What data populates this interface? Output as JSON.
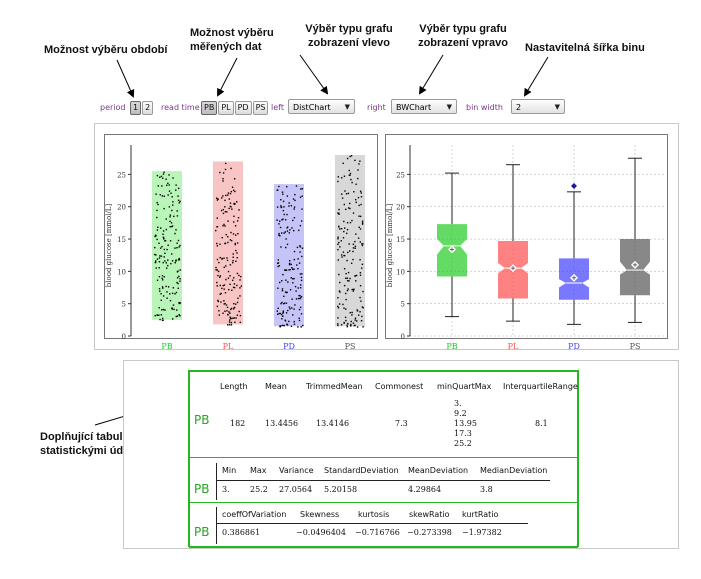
{
  "annotations": {
    "period_select": "Možnost výběru období",
    "data_select": "Možnost výběru měřených dat",
    "left_chart": "Výběr typu grafu zobrazení vlevo",
    "right_chart": "Výběr typu grafu zobrazení vpravo",
    "bin_width": "Nastavitelná šířka binu",
    "stats_table": "Doplňující tabulka se statistickými údaji"
  },
  "controls": {
    "period_label": "period",
    "periods": [
      "1",
      "2"
    ],
    "read_time_label": "read time",
    "read_times": [
      "PB",
      "PL",
      "PD",
      "PS"
    ],
    "read_time_selected": "PB",
    "left_label": "left",
    "left_value": "DistChart",
    "right_label": "right",
    "right_value": "BWChart",
    "bin_width_label": "bin width",
    "bin_width_value": "2"
  },
  "colors": {
    "PB": "#22cc22",
    "PL": "#ff4d4d",
    "PD": "#4040ff",
    "PS": "#555555",
    "PB_fill": "#b9f5b9",
    "PL_fill": "#f9c4c4",
    "PD_fill": "#c4c4f8",
    "PS_fill": "#d8d8d8"
  },
  "chart_data": [
    {
      "type": "scatter",
      "chart": "DistChart",
      "ylabel": "blood glucose [mmol/L]",
      "categories": [
        "PB",
        "PL",
        "PD",
        "PS"
      ],
      "ylim": [
        0,
        28
      ],
      "yticks": [
        0,
        5,
        10,
        15,
        20,
        25
      ],
      "ranges": [
        [
          2.5,
          25.5
        ],
        [
          1.8,
          27
        ],
        [
          1.5,
          23.5
        ],
        [
          1.5,
          28
        ]
      ],
      "gridlines": false
    },
    {
      "type": "box",
      "chart": "BWChart",
      "ylabel": "blood glucose [mmol/L]",
      "categories": [
        "PB",
        "PL",
        "PD",
        "PS"
      ],
      "ylim": [
        0,
        28
      ],
      "yticks": [
        0,
        5,
        10,
        15,
        20,
        25
      ],
      "gridlines": true,
      "series": [
        {
          "name": "PB",
          "min": 3.0,
          "q1": 9.2,
          "median": 13.95,
          "q3": 17.3,
          "max": 25.2,
          "mean": 13.4,
          "notch": [
            12.6,
            15.0
          ]
        },
        {
          "name": "PL",
          "min": 2.3,
          "q1": 5.8,
          "median": 10.5,
          "q3": 14.7,
          "max": 26.5,
          "mean": 10.5,
          "notch": [
            9.7,
            11.3
          ]
        },
        {
          "name": "PD",
          "min": 1.8,
          "q1": 5.6,
          "median": 8.2,
          "q3": 12.0,
          "max": 22.3,
          "mean": 9.0,
          "notch": [
            7.5,
            8.8
          ],
          "outliers": [
            23.2
          ]
        },
        {
          "name": "PS",
          "min": 2.1,
          "q1": 6.3,
          "median": 10.2,
          "q3": 15.0,
          "max": 27.5,
          "mean": 11.0,
          "notch": [
            9.5,
            11.5
          ]
        }
      ]
    }
  ],
  "stats": {
    "group": "PB",
    "table1": {
      "headers": [
        "Length",
        "Mean",
        "TrimmedMean",
        "Commonest",
        "minQuartMax",
        "InterquartileRange"
      ],
      "values": [
        "182",
        "13.4456",
        "13.4146",
        "7.3",
        "",
        "8.1"
      ],
      "minQuartMax": [
        "3.",
        "9.2",
        "13.95",
        "17.3",
        "25.2"
      ]
    },
    "table2": {
      "headers": [
        "Min",
        "Max",
        "Variance",
        "StandardDeviation",
        "MeanDeviation",
        "MedianDeviation"
      ],
      "values": [
        "3.",
        "25.2",
        "27.0564",
        "5.20158",
        "4.29864",
        "3.8"
      ]
    },
    "table3": {
      "headers": [
        "coeffOfVariation",
        "Skewness",
        "kurtosis",
        "skewRatio",
        "kurtRatio"
      ],
      "values": [
        "0.386861",
        "−0.0496404",
        "−0.716766",
        "−0.273398",
        "−1.97382"
      ]
    }
  }
}
